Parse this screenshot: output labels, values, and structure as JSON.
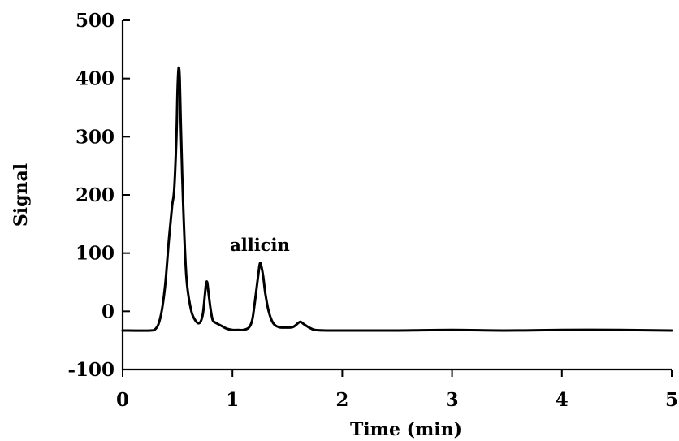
{
  "chart_data": {
    "type": "line",
    "title": "",
    "xlabel": "Time (min)",
    "ylabel": "Signal",
    "xlim": [
      0,
      5
    ],
    "ylim": [
      -100,
      500
    ],
    "x_ticks": [
      0,
      1,
      2,
      3,
      4,
      5
    ],
    "x_tick_labels": [
      "0",
      "1",
      "2",
      "3",
      "4",
      "5"
    ],
    "y_ticks": [
      -100,
      0,
      100,
      200,
      300,
      400,
      500
    ],
    "y_tick_labels": [
      "-100",
      "0",
      "100",
      "200",
      "300",
      "400",
      "500"
    ],
    "grid": false,
    "legend": "none",
    "line_color": "#000000",
    "annotations": [
      {
        "text": "allicin",
        "x": 1.25,
        "y": 115
      }
    ],
    "series": [
      {
        "x": [
          0,
          0.25,
          0.3,
          0.33,
          0.36,
          0.39,
          0.42,
          0.45,
          0.47,
          0.49,
          0.5,
          0.51,
          0.52,
          0.53,
          0.55,
          0.58,
          0.62,
          0.66,
          0.7,
          0.73,
          0.75,
          0.76,
          0.77,
          0.78,
          0.8,
          0.82,
          0.85,
          0.9,
          0.95,
          1.0,
          1.05,
          1.1,
          1.15,
          1.18,
          1.2,
          1.22,
          1.24,
          1.25,
          1.26,
          1.28,
          1.3,
          1.33,
          1.37,
          1.42,
          1.48,
          1.55,
          1.6,
          1.62,
          1.65,
          1.7,
          1.75,
          1.85,
          2.0,
          2.5,
          3.0,
          3.5,
          4.0,
          4.5,
          5.0
        ],
        "y": [
          -33,
          -33,
          -30,
          -20,
          5,
          50,
          120,
          180,
          210,
          300,
          380,
          418,
          400,
          320,
          190,
          60,
          5,
          -15,
          -20,
          -5,
          30,
          48,
          50,
          35,
          5,
          -15,
          -20,
          -25,
          -30,
          -32,
          -32,
          -32,
          -28,
          -15,
          10,
          40,
          70,
          82,
          80,
          60,
          30,
          0,
          -20,
          -27,
          -28,
          -27,
          -20,
          -18,
          -22,
          -28,
          -32,
          -33,
          -33,
          -33,
          -32,
          -33,
          -32,
          -32,
          -33
        ]
      }
    ]
  }
}
